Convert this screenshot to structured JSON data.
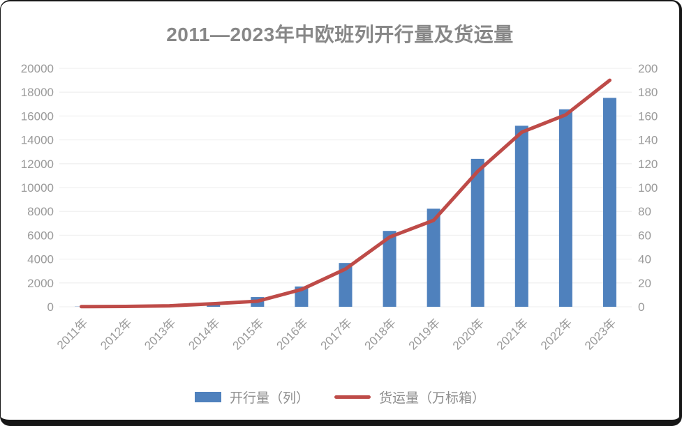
{
  "title": "2011—2023年中欧班列开行量及货运量",
  "legend": [
    {
      "label": "开行量（列）",
      "swatch": "bar-swatch",
      "color": "#4F81BD"
    },
    {
      "label": "货运量（万标箱）",
      "swatch": "line-swatch",
      "color": "#BE4B48"
    }
  ],
  "colors": {
    "bar": "#4F81BD",
    "line": "#BE4B48",
    "grid": "#f1f1f1",
    "axis_text": "#9a9a9a",
    "title_text": "#878787",
    "frame": "#161616"
  },
  "chart_data": {
    "type": "bar",
    "subtype": "combo-bar-line",
    "title": "2011—2023年中欧班列开行量及货运量",
    "categories": [
      "2011年",
      "2012年",
      "2013年",
      "2014年",
      "2015年",
      "2016年",
      "2017年",
      "2018年",
      "2019年",
      "2020年",
      "2021年",
      "2022年",
      "2023年"
    ],
    "series": [
      {
        "name": "开行量（列）",
        "type": "bar",
        "axis": "left",
        "color": "#4F81BD",
        "values": [
          17,
          42,
          80,
          308,
          815,
          1702,
          3673,
          6363,
          8225,
          12406,
          15183,
          16562,
          17523
        ]
      },
      {
        "name": "货运量（万标箱）",
        "type": "line",
        "axis": "right",
        "color": "#BE4B48",
        "values": [
          0.14,
          0.3,
          0.8,
          2.6,
          4.7,
          14.5,
          31.7,
          58.4,
          72.5,
          113.5,
          146.4,
          161,
          190
        ]
      }
    ],
    "y_left": {
      "min": 0,
      "max": 20000,
      "step": 2000,
      "ticks": [
        "0",
        "2000",
        "4000",
        "6000",
        "8000",
        "10000",
        "12000",
        "14000",
        "16000",
        "18000",
        "20000"
      ]
    },
    "y_right": {
      "min": 0,
      "max": 200,
      "step": 20,
      "ticks": [
        "0",
        "20",
        "40",
        "60",
        "80",
        "100",
        "120",
        "140",
        "160",
        "180",
        "200"
      ]
    },
    "grid": true,
    "legend_position": "bottom",
    "x_label_rotation": -45
  }
}
